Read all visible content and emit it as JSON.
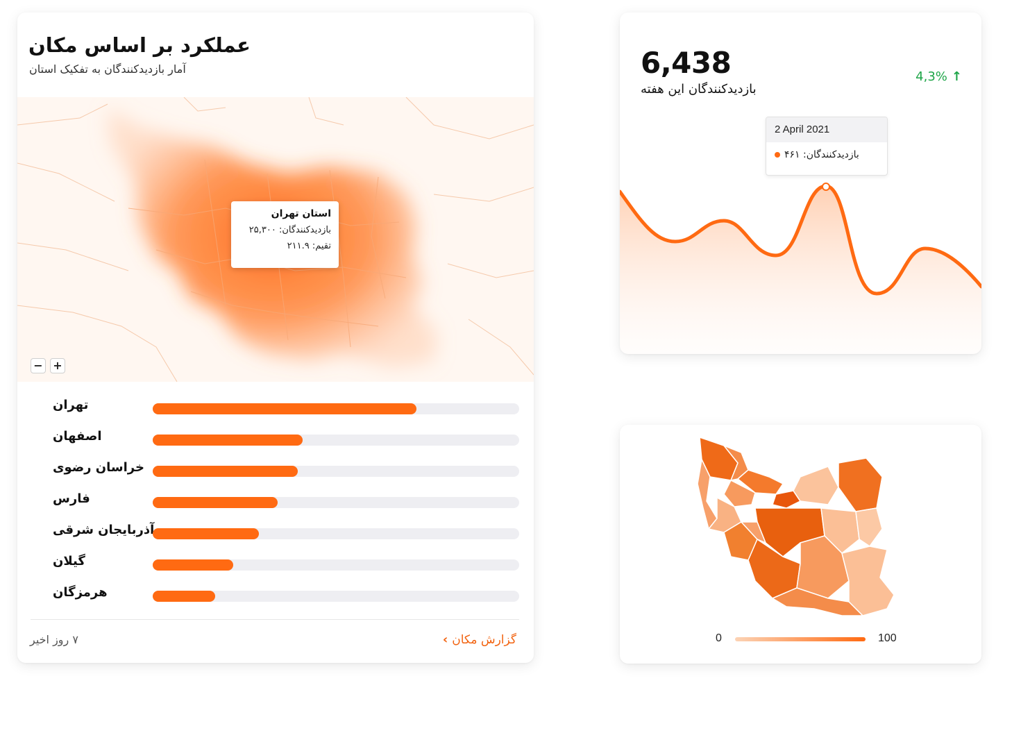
{
  "location_card": {
    "title": "عملکرد بر اساس مکان",
    "subtitle": "آمار بازدیدکنندگان به تفکیک استان",
    "map_tooltip": {
      "title": "استان تهران",
      "visitors_line": "بازدیدکنندگان: ۲۵,۳۰۰",
      "rate_line": "تقیم: ۲۱۱.۹"
    },
    "zoom_out_label": "−",
    "zoom_in_label": "+",
    "rows": [
      {
        "label": "تهران",
        "fraction": 0.72
      },
      {
        "label": "اصفهان",
        "fraction": 0.41
      },
      {
        "label": "خراسان رضوی",
        "fraction": 0.395
      },
      {
        "label": "فارس",
        "fraction": 0.34
      },
      {
        "label": "آذربایجان شرقی",
        "fraction": 0.29
      },
      {
        "label": "گیلان",
        "fraction": 0.22
      },
      {
        "label": "هرمزگان",
        "fraction": 0.17
      }
    ],
    "footer_period": "۷ روز اخیر",
    "footer_link": "گزارش مکان",
    "accent_color": "#ff6a12"
  },
  "visitors_card": {
    "value": "6,438",
    "label": "بازدیدکنندگان این هفته",
    "change": "4,3%",
    "change_icon": "arrow-up-icon",
    "change_color": "#1ea548",
    "tooltip": {
      "date": "2 April 2021",
      "value_line": "بازدیدکنندگان: ۴۶۱"
    }
  },
  "choropleth_card": {
    "legend_min": "0",
    "legend_max": "100"
  }
}
